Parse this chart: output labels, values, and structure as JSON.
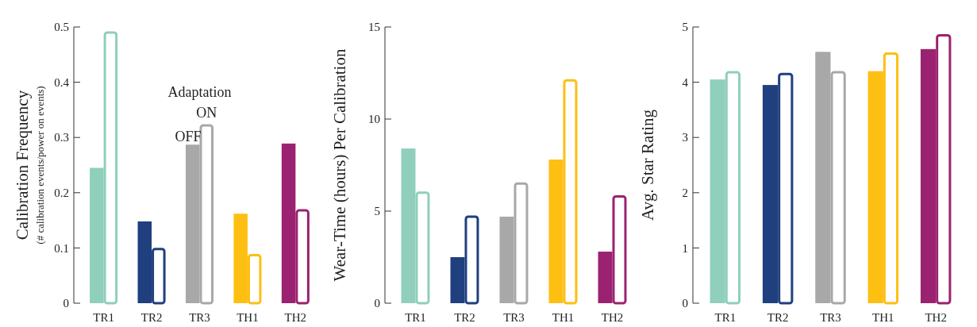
{
  "chart_data": [
    {
      "type": "bar",
      "ylabel": "Calibration Frequency",
      "subtitle": "(# calibration events/power on events)",
      "legend_title": "Adaptation",
      "categories": [
        "TR1",
        "TR2",
        "TR3",
        "TH1",
        "TH2"
      ],
      "series": [
        {
          "colors": [
            "#8fcfbb",
            "#1f3f7f",
            "#a8a8a8",
            "#fdbf12",
            "#9b2270"
          ],
          "values": [
            0.245,
            0.148,
            0.287,
            0.162,
            0.289
          ]
        },
        {
          "colors": [
            "#8fcfbb",
            "#1f3f7f",
            "#a8a8a8",
            "#fdbf12",
            "#9b2270"
          ],
          "values": [
            0.49,
            0.098,
            0.322,
            0.087,
            0.168
          ]
        }
      ],
      "annotations": [
        {
          "text": "OFF",
          "x": "TR3",
          "y": 0.287
        },
        {
          "text": "ON",
          "x": "TR3",
          "y": 0.322
        }
      ],
      "ylim": [
        0,
        0.5
      ],
      "yticks": [
        0,
        0.1,
        0.2,
        0.3,
        0.4,
        0.5
      ],
      "grid": false
    },
    {
      "type": "bar",
      "ylabel": "Wear-Time (hours) Per Calibration",
      "categories": [
        "TR1",
        "TR2",
        "TR3",
        "TH1",
        "TH2"
      ],
      "series": [
        {
          "colors": [
            "#8fcfbb",
            "#1f3f7f",
            "#a8a8a8",
            "#fdbf12",
            "#9b2270"
          ],
          "values": [
            8.4,
            2.5,
            4.7,
            7.8,
            2.8
          ]
        },
        {
          "colors": [
            "#8fcfbb",
            "#1f3f7f",
            "#a8a8a8",
            "#fdbf12",
            "#9b2270"
          ],
          "values": [
            6.0,
            4.7,
            6.5,
            12.1,
            5.8
          ]
        }
      ],
      "ylim": [
        0,
        15
      ],
      "yticks": [
        0,
        5,
        10,
        15
      ],
      "grid": false
    },
    {
      "type": "bar",
      "ylabel": "Avg. Star Rating",
      "categories": [
        "TR1",
        "TR2",
        "TR3",
        "TH1",
        "TH2"
      ],
      "series": [
        {
          "colors": [
            "#8fcfbb",
            "#1f3f7f",
            "#a8a8a8",
            "#fdbf12",
            "#9b2270"
          ],
          "values": [
            4.05,
            3.95,
            4.55,
            4.2,
            4.6
          ]
        },
        {
          "colors": [
            "#8fcfbb",
            "#1f3f7f",
            "#a8a8a8",
            "#fdbf12",
            "#9b2270"
          ],
          "values": [
            4.18,
            4.15,
            4.18,
            4.52,
            4.85
          ]
        }
      ],
      "ylim": [
        0,
        5
      ],
      "yticks": [
        0,
        1,
        2,
        3,
        4,
        5
      ],
      "grid": false
    }
  ]
}
